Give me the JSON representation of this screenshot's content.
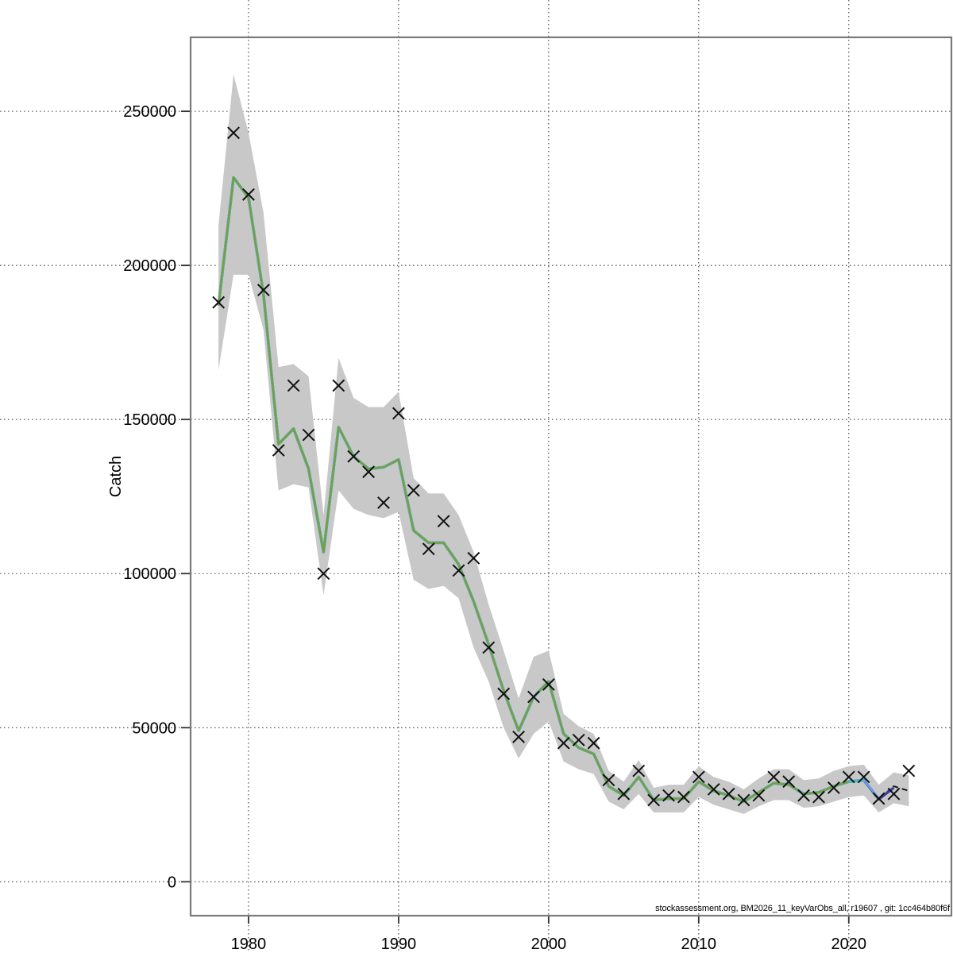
{
  "chart_data": {
    "type": "line",
    "title": "",
    "xlabel": "",
    "ylabel": "Catch",
    "grid": "dotted gridlines at every axis tick, extending across the full canvas beyond the plot box",
    "legend": "none",
    "xlim": [
      1976.14,
      2026.84
    ],
    "ylim": [
      -11000,
      274000
    ],
    "x_ticks": [
      1980,
      1990,
      2000,
      2010,
      2020
    ],
    "x_tick_labels": [
      "1980",
      "1990",
      "2000",
      "2010",
      "2020"
    ],
    "y_ticks": [
      0,
      50000,
      100000,
      150000,
      200000,
      250000
    ],
    "y_tick_labels": [
      "0",
      "50000",
      "100000",
      "150000",
      "200000",
      "250000"
    ],
    "years": [
      1978,
      1979,
      1980,
      1981,
      1982,
      1983,
      1984,
      1985,
      1986,
      1987,
      1988,
      1989,
      1990,
      1991,
      1992,
      1993,
      1994,
      1995,
      1996,
      1997,
      1998,
      1999,
      2000,
      2001,
      2002,
      2003,
      2004,
      2005,
      2006,
      2007,
      2008,
      2009,
      2010,
      2011,
      2012,
      2013,
      2014,
      2015,
      2016,
      2017,
      2018,
      2019,
      2020,
      2021,
      2022,
      2023,
      2024
    ],
    "observed": {
      "name": "observed-catch",
      "marker": "x-cross (pch 4)",
      "color": "#111111",
      "values": [
        188000,
        243000,
        223000,
        192000,
        140000,
        161000,
        145000,
        100000,
        161000,
        138000,
        133000,
        123000,
        152000,
        127000,
        108000,
        117000,
        101000,
        105000,
        76000,
        61000,
        47000,
        60000,
        64000,
        45000,
        46000,
        45000,
        33000,
        28500,
        36000,
        26500,
        28000,
        27500,
        34000,
        30000,
        28500,
        26500,
        28000,
        34000,
        32500,
        28000,
        27500,
        30500,
        34000,
        34000,
        27000,
        28500,
        36000
      ]
    },
    "band": {
      "name": "confidence-band",
      "color": "#c8c8c8",
      "lower": [
        166000,
        197000,
        197000,
        179000,
        127000,
        129000,
        128000,
        93000,
        127000,
        121000,
        119000,
        118000,
        120000,
        98000,
        95000,
        96000,
        92000,
        76000,
        65000,
        50000,
        40000,
        48000,
        52000,
        39000,
        36500,
        35000,
        26000,
        23500,
        28500,
        22500,
        22500,
        22500,
        27500,
        25000,
        23500,
        22000,
        24500,
        26500,
        26500,
        24000,
        24500,
        26000,
        27500,
        28000,
        22500,
        25500,
        24500
      ],
      "upper": [
        213000,
        262000,
        243000,
        217000,
        167000,
        168000,
        164000,
        119000,
        170000,
        157000,
        154000,
        154000,
        159000,
        131000,
        126000,
        126000,
        119000,
        107000,
        90000,
        75000,
        59500,
        73000,
        75000,
        54500,
        50500,
        48000,
        36000,
        32500,
        39500,
        30500,
        31500,
        31500,
        37500,
        34000,
        32500,
        30000,
        33500,
        36500,
        36500,
        33000,
        33500,
        36000,
        37500,
        38000,
        31500,
        35500,
        34500
      ]
    },
    "fit_base": {
      "note": "fitted catch shared by all model runs, 1978-2019",
      "years_start": 1978,
      "values": [
        187000,
        228500,
        222000,
        190500,
        142000,
        147000,
        134000,
        107000,
        147500,
        138000,
        134000,
        134500,
        137000,
        114000,
        110000,
        110000,
        103000,
        91000,
        77000,
        62000,
        49000,
        60000,
        65000,
        48000,
        43500,
        41500,
        31000,
        28000,
        34000,
        26500,
        27000,
        27000,
        32500,
        29500,
        28000,
        26000,
        29000,
        32000,
        31500,
        28500,
        29000,
        31000
      ]
    },
    "runs": [
      {
        "name": "run-dashed-black",
        "color": "#1a1a1a",
        "width": 2,
        "dash": "7 5",
        "end_year": 2024,
        "extra_years": [
          2020,
          2021,
          2022,
          2023,
          2024
        ],
        "extra_values": [
          32500,
          33000,
          26800,
          31000,
          29500
        ]
      },
      {
        "name": "run-navy",
        "color": "#3b3f9e",
        "color_note": "dark blue",
        "width": 3.4,
        "dash": null,
        "end_year": 2023,
        "extra_years": [
          2020,
          2021,
          2022,
          2023
        ],
        "extra_values": [
          32500,
          33000,
          26800,
          30500
        ]
      },
      {
        "name": "run-steelblue",
        "color": "#63a2e4",
        "color_note": "light steel blue",
        "width": 2.6,
        "dash": null,
        "end_year": 2022,
        "extra_years": [
          2020,
          2021,
          2022
        ],
        "extra_values": [
          32500,
          33000,
          27000
        ]
      },
      {
        "name": "run-cyan",
        "color": "#3fc1c9",
        "color_note": "turquoise",
        "width": 3.4,
        "dash": null,
        "end_year": 2021,
        "extra_years": [
          2020,
          2021
        ],
        "extra_values": [
          32500,
          33000
        ]
      },
      {
        "name": "run-green",
        "color": "#7d9c3e",
        "color_note": "olive green, topmost line",
        "width": 2.4,
        "dash": null,
        "end_year": 2020,
        "extra_years": [
          2020
        ],
        "extra_values": [
          32500
        ]
      }
    ]
  },
  "axes": {
    "y_title": "Catch",
    "box_color": "#7a7a7a",
    "grid_color": "#4a4a4a",
    "tick_color": "#333333"
  },
  "footer": {
    "credit": "stockassessment.org, BM2026_11_keyVarObs_all, r19607 , git: 1cc464b80f6f"
  }
}
